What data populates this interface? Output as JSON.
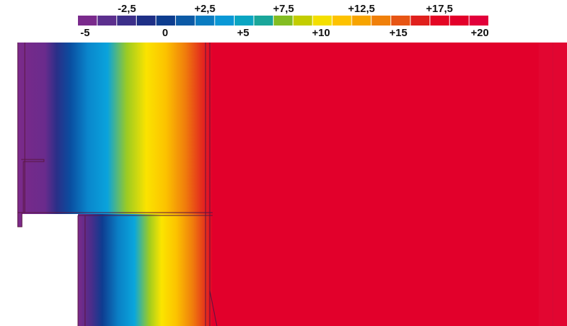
{
  "legend": {
    "top_labels": [
      "-2,5",
      "+2,5",
      "+7,5",
      "+12,5",
      "+17,5"
    ],
    "bottom_labels": [
      "-5",
      "0",
      "+5",
      "+10",
      "+15",
      "+20"
    ],
    "swatches": [
      "#7a2a8c",
      "#5c2f8e",
      "#3c2f8a",
      "#1e2f86",
      "#0d3d8f",
      "#0c5aa6",
      "#0a7cc1",
      "#0a98d6",
      "#0aa5c2",
      "#1aa69a",
      "#83bd22",
      "#c3cd00",
      "#f4df00",
      "#fdc200",
      "#f7a400",
      "#f0800a",
      "#e75514",
      "#e0201d",
      "#e40624",
      "#e3002a",
      "#e2003a"
    ]
  },
  "colors": {
    "cold": "#7b2a8a",
    "warm": "#e2002b",
    "structure_line": "#5a1540"
  }
}
